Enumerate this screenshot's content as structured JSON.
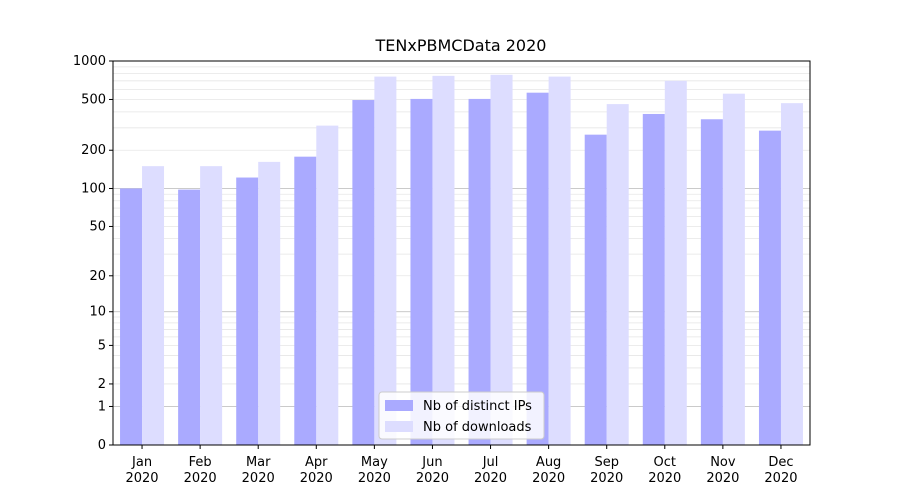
{
  "chart_data": {
    "type": "bar",
    "title": "TENxPBMCData 2020",
    "xlabel": "",
    "ylabel": "",
    "yscale": "log1p",
    "ylim": [
      0,
      1000
    ],
    "yticks": [
      0,
      1,
      2,
      5,
      10,
      20,
      50,
      100,
      200,
      500,
      1000
    ],
    "grid": true,
    "legend_position": "bottom-center",
    "categories": [
      [
        "Jan",
        "2020"
      ],
      [
        "Feb",
        "2020"
      ],
      [
        "Mar",
        "2020"
      ],
      [
        "Apr",
        "2020"
      ],
      [
        "May",
        "2020"
      ],
      [
        "Jun",
        "2020"
      ],
      [
        "Jul",
        "2020"
      ],
      [
        "Aug",
        "2020"
      ],
      [
        "Sep",
        "2020"
      ],
      [
        "Oct",
        "2020"
      ],
      [
        "Nov",
        "2020"
      ],
      [
        "Dec",
        "2020"
      ]
    ],
    "series": [
      {
        "name": "Nb of distinct IPs",
        "color": "#aaaaff",
        "values": [
          100,
          98,
          122,
          178,
          495,
          505,
          505,
          565,
          265,
          385,
          350,
          285
        ]
      },
      {
        "name": "Nb of downloads",
        "color": "#ddddff",
        "values": [
          150,
          150,
          162,
          312,
          755,
          765,
          780,
          755,
          460,
          700,
          555,
          468
        ]
      }
    ]
  }
}
